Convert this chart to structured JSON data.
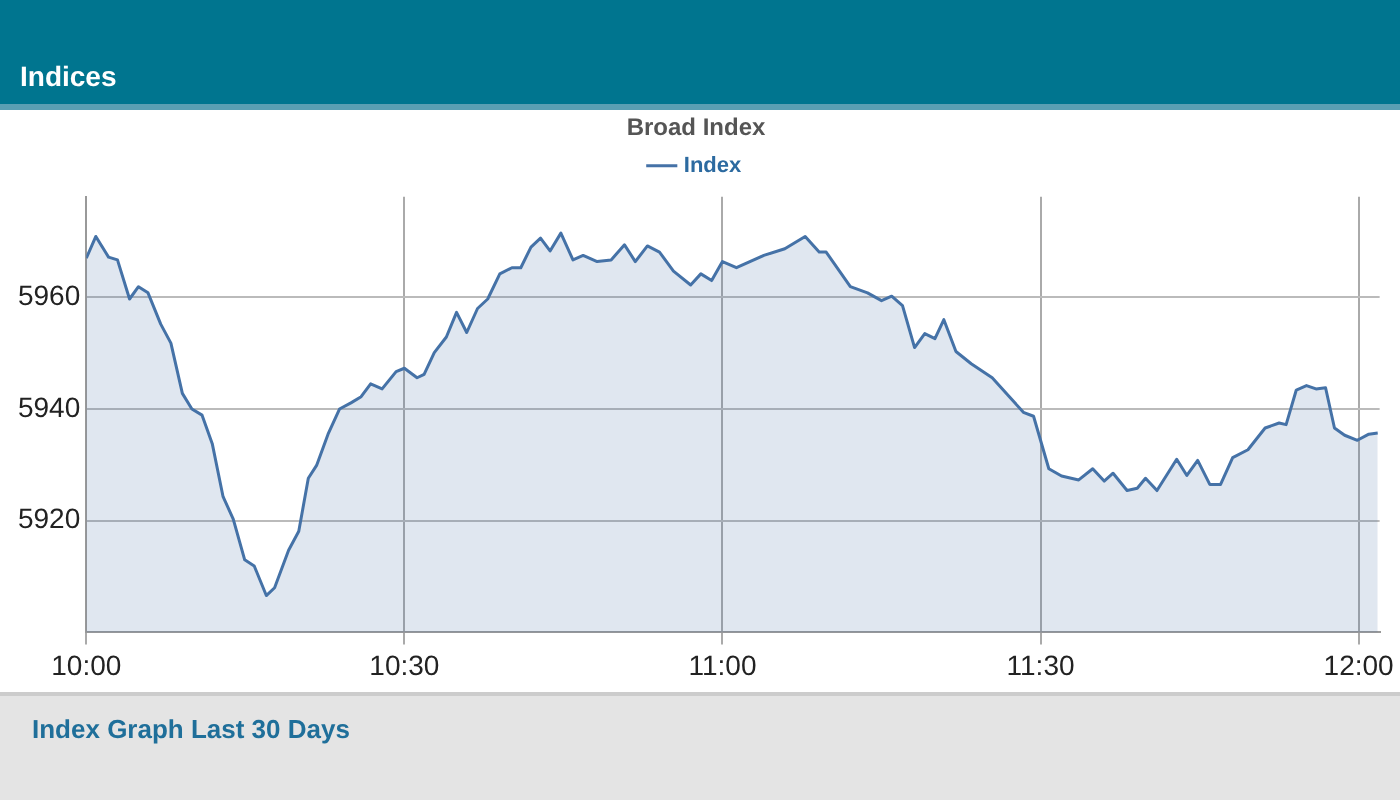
{
  "chart_data": {
    "type": "area",
    "title": "Broad Index",
    "annotations": [
      "Indices",
      "Index Graph Last 30 Days"
    ],
    "xlim": [
      10,
      12.033
    ],
    "xticks": [
      {
        "value": 10,
        "label": "10:00"
      },
      {
        "value": 10.5,
        "label": "10:30"
      },
      {
        "value": 11,
        "label": "11:00"
      },
      {
        "value": 11.5,
        "label": "11:30"
      },
      {
        "value": 12,
        "label": "12:00"
      }
    ],
    "ylim": [
      5900,
      5978
    ],
    "yticks": [
      5920,
      5940,
      5960
    ],
    "grid": true,
    "legend": "top",
    "marker": "none",
    "line_style": "solid",
    "series": [
      {
        "name": "Index",
        "color": "#4572a7",
        "x": [
          10,
          10.015,
          10.035,
          10.049,
          10.068,
          10.082,
          10.097,
          10.117,
          10.133,
          10.151,
          10.166,
          10.182,
          10.198,
          10.215,
          10.231,
          10.249,
          10.264,
          10.283,
          10.296,
          10.318,
          10.334,
          10.349,
          10.362,
          10.38,
          10.398,
          10.416,
          10.432,
          10.447,
          10.465,
          10.487,
          10.5,
          10.52,
          10.531,
          10.547,
          10.566,
          10.582,
          10.598,
          10.615,
          10.631,
          10.65,
          10.669,
          10.683,
          10.699,
          10.714,
          10.729,
          10.746,
          10.765,
          10.781,
          10.803,
          10.825,
          10.846,
          10.863,
          10.882,
          10.901,
          10.923,
          10.95,
          10.966,
          10.983,
          11,
          11.022,
          11.065,
          11.098,
          11.13,
          11.152,
          11.163,
          11.201,
          11.228,
          11.25,
          11.266,
          11.283,
          11.302,
          11.318,
          11.334,
          11.348,
          11.367,
          11.391,
          11.424,
          11.451,
          11.473,
          11.489,
          11.513,
          11.533,
          11.56,
          11.582,
          11.6,
          11.614,
          11.636,
          11.652,
          11.665,
          11.683,
          11.714,
          11.73,
          11.747,
          11.766,
          11.783,
          11.802,
          11.826,
          11.853,
          11.875,
          11.886,
          11.902,
          11.918,
          11.933,
          11.948,
          11.962,
          11.978,
          11.998,
          12.016,
          12.03
        ],
        "values": [
          5967,
          5970.9,
          5967.2,
          5966.7,
          5959.7,
          5961.9,
          5960.8,
          5955.2,
          5951.8,
          5942.8,
          5940,
          5938.9,
          5933.8,
          5924.3,
          5920.3,
          5913,
          5911.9,
          5906.6,
          5908,
          5914.7,
          5918.1,
          5927.6,
          5929.9,
          5935.5,
          5940,
          5941.1,
          5942.2,
          5944.5,
          5943.6,
          5946.7,
          5947.3,
          5945.6,
          5946.2,
          5950.1,
          5952.9,
          5957.3,
          5953.7,
          5958,
          5959.7,
          5964.2,
          5965.3,
          5965.3,
          5969,
          5970.6,
          5968.3,
          5971.5,
          5966.7,
          5967.5,
          5966.4,
          5966.7,
          5969.4,
          5966.4,
          5969.2,
          5968.1,
          5964.7,
          5962.2,
          5964.2,
          5963,
          5966.4,
          5965.3,
          5967.5,
          5968.7,
          5970.9,
          5968.1,
          5968.1,
          5961.9,
          5960.8,
          5959.4,
          5960.2,
          5958.5,
          5951,
          5953.5,
          5952.6,
          5956,
          5950.3,
          5948.1,
          5945.6,
          5942.2,
          5939.4,
          5938.7,
          5929.3,
          5928,
          5927.3,
          5929.3,
          5927.1,
          5928.5,
          5925.4,
          5925.8,
          5927.6,
          5925.4,
          5931,
          5928.1,
          5930.8,
          5926.5,
          5926.5,
          5931.3,
          5932.7,
          5936.6,
          5937.5,
          5937.2,
          5943.4,
          5944.2,
          5943.6,
          5943.8,
          5936.6,
          5935.3,
          5934.4,
          5935.5,
          5935.7
        ]
      }
    ]
  }
}
